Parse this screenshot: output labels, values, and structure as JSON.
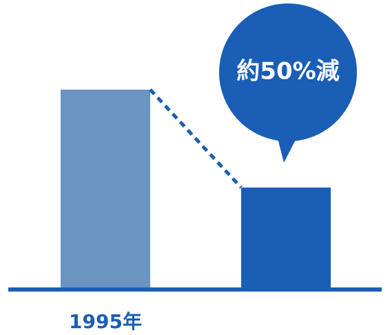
{
  "chart_data": {
    "type": "bar",
    "categories": [
      "1995年",
      null
    ],
    "values": [
      100,
      51
    ],
    "colors": [
      "#6b94c2",
      "#1a5eb6"
    ],
    "ylim": [
      0,
      100
    ],
    "annotation": "約50%減",
    "annotation_color": "#1a5eb6",
    "axis_color": "#1a5eb6"
  }
}
